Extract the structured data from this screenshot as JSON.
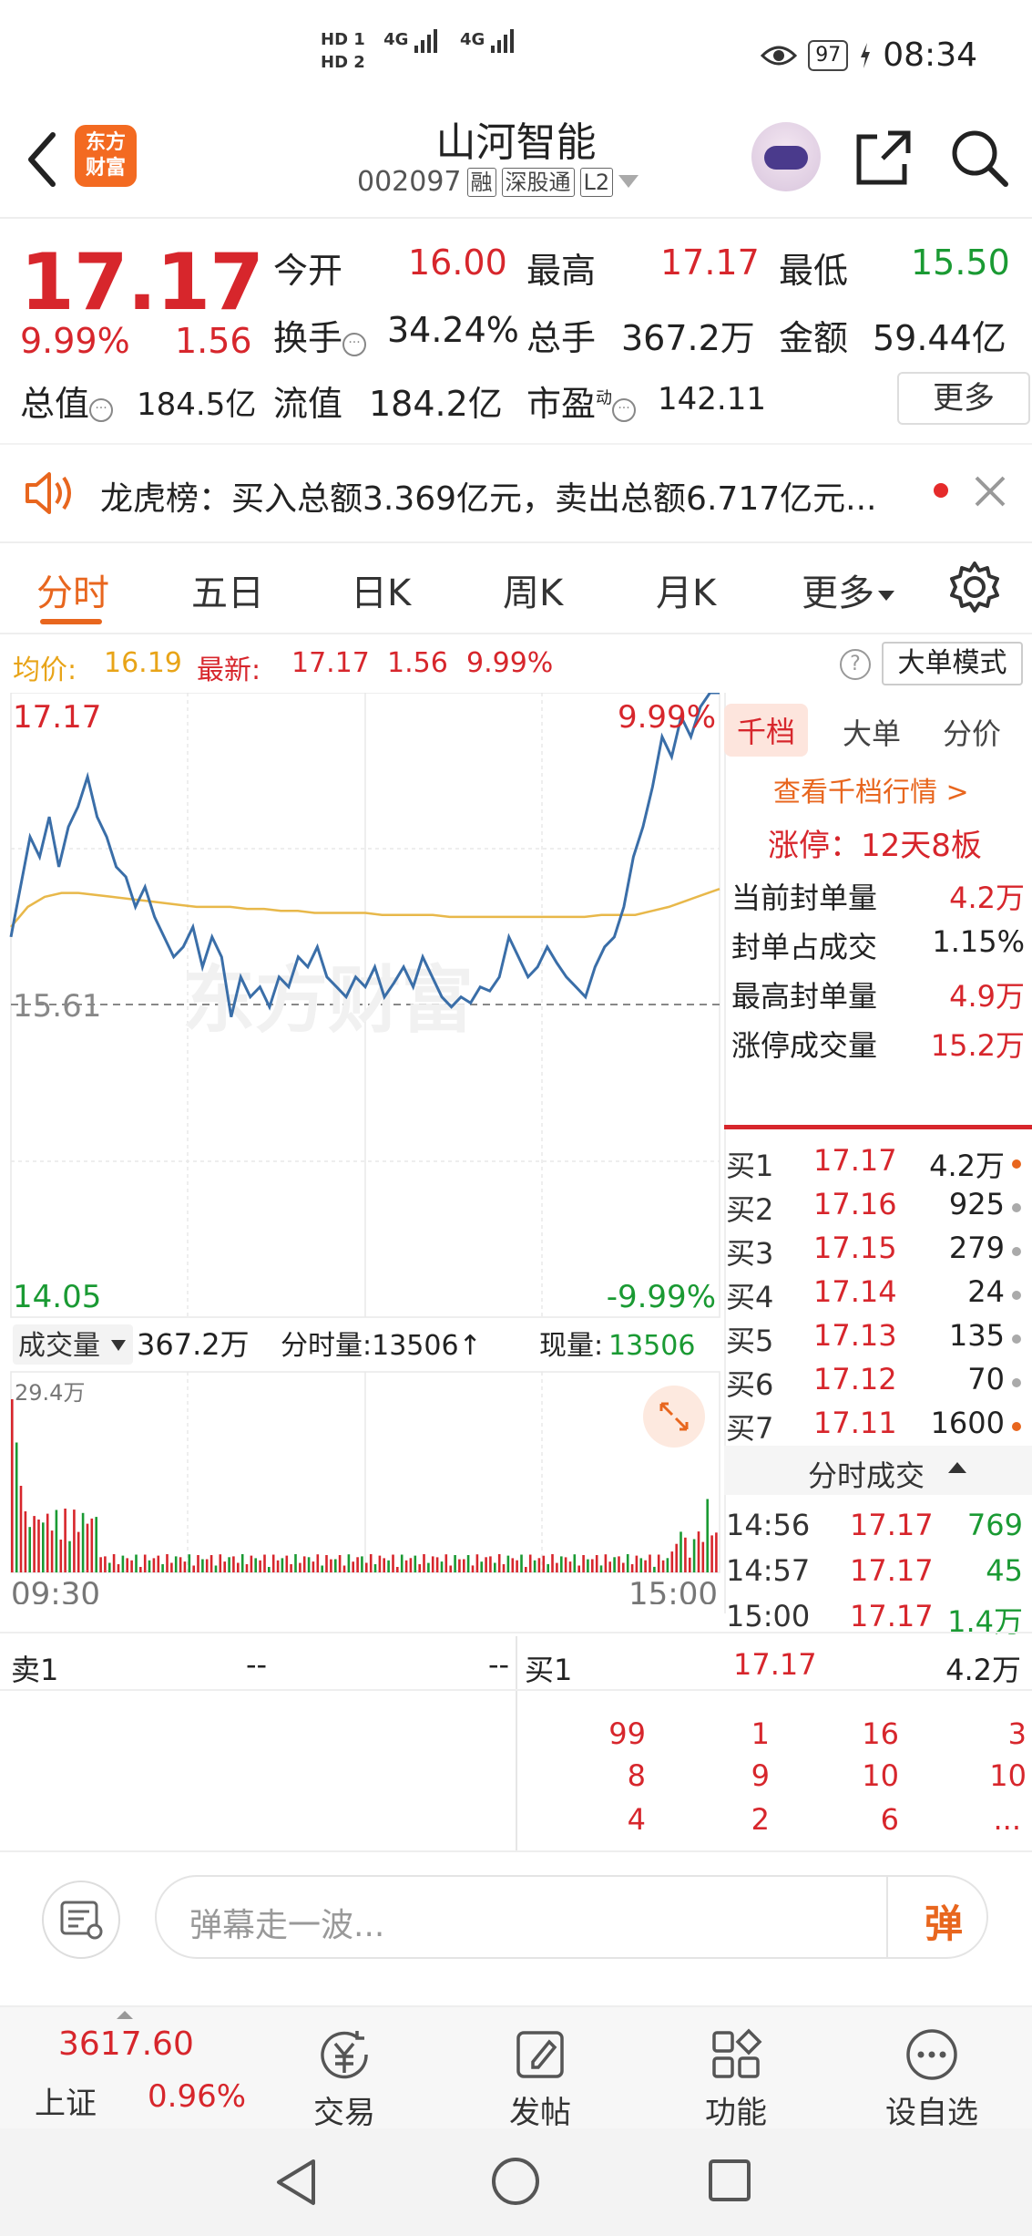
{
  "status_bar": {
    "hd1": "HD 1",
    "hd2": "HD 2",
    "net1": "4G",
    "net2": "4G",
    "battery": "97",
    "time": "08:34"
  },
  "header": {
    "logo_line1": "东方",
    "logo_line2": "财富",
    "stock_name": "山河智能",
    "stock_code": "002097",
    "tags": [
      "融",
      "深股通",
      "L2"
    ]
  },
  "quote": {
    "price": "17.17",
    "pct": "9.99%",
    "change": "1.56",
    "open_label": "今开",
    "open": "16.00",
    "high_label": "最高",
    "high": "17.17",
    "low_label": "最低",
    "low": "15.50",
    "turnover_label": "换手",
    "turnover": "34.24%",
    "volume_label": "总手",
    "volume": "367.2万",
    "amount_label": "金额",
    "amount": "59.44亿",
    "mktcap_label": "总值",
    "mktcap": "184.5亿",
    "float_label": "流值",
    "float": "184.2亿",
    "pe_label": "市盈",
    "pe_super": "动",
    "pe": "142.11",
    "more": "更多"
  },
  "notice": {
    "text": "龙虎榜：买入总额3.369亿元，卖出总额6.717亿元..."
  },
  "tabs": [
    {
      "label": "分时"
    },
    {
      "label": "五日"
    },
    {
      "label": "日K"
    },
    {
      "label": "周K"
    },
    {
      "label": "月K"
    },
    {
      "label": "更多"
    }
  ],
  "info_line": {
    "avg_label": "均价:",
    "avg": "16.19",
    "latest_label": "最新:",
    "latest": "17.17",
    "latest_chg": "1.56",
    "latest_pct": "9.99%",
    "big_order": "大单模式"
  },
  "chart": {
    "top_price": "17.17",
    "top_pct": "9.99%",
    "mid_price": "15.61",
    "bottom_price": "14.05",
    "bottom_pct": "-9.99%",
    "vol_label": "成交量",
    "vol_total": "367.2万",
    "minute_vol": "分时量:13506↑",
    "cur_vol_label": "现量:",
    "cur_vol": "13506",
    "vol_max": "29.4万",
    "time_start": "09:30",
    "time_end": "15:00"
  },
  "chart_data": {
    "type": "line",
    "title": "",
    "ylim": [
      14.05,
      17.17
    ],
    "xlabel": "",
    "ylabel": "",
    "x_range": [
      "09:30",
      "15:00"
    ],
    "series": [
      {
        "values": [
          15.95,
          16.2,
          16.45,
          16.35,
          16.55,
          16.3,
          16.5,
          16.6,
          16.75,
          16.55,
          16.45,
          16.3,
          16.25,
          16.1,
          16.2,
          16.05,
          15.95,
          15.85,
          15.9,
          16.0,
          15.8,
          15.95,
          15.85,
          15.55,
          15.75,
          15.65,
          15.7,
          15.6,
          15.75,
          15.7,
          15.85,
          15.8,
          15.9,
          15.75,
          15.7,
          15.65,
          15.75,
          15.7,
          15.8,
          15.65,
          15.72,
          15.8,
          15.7,
          15.85,
          15.75,
          15.65,
          15.6,
          15.65,
          15.62,
          15.7,
          15.68,
          15.75,
          15.95,
          15.85,
          15.75,
          15.8,
          15.9,
          15.82,
          15.75,
          15.7,
          15.65,
          15.8,
          15.9,
          15.95,
          16.1,
          16.35,
          16.5,
          16.7,
          16.95,
          16.85,
          17.05,
          16.95,
          17.1,
          17.17,
          17.17
        ]
      },
      {
        "values": [
          16.0,
          16.1,
          16.15,
          16.17,
          16.17,
          16.16,
          16.15,
          16.14,
          16.13,
          16.12,
          16.11,
          16.1,
          16.1,
          16.1,
          16.09,
          16.09,
          16.08,
          16.08,
          16.07,
          16.07,
          16.07,
          16.07,
          16.06,
          16.06,
          16.06,
          16.06,
          16.05,
          16.05,
          16.05,
          16.05,
          16.05,
          16.05,
          16.05,
          16.05,
          16.05,
          16.06,
          16.06,
          16.06,
          16.08,
          16.1,
          16.13,
          16.16,
          16.19
        ]
      }
    ]
  },
  "rpanel": {
    "tabs": [
      "千档",
      "大单",
      "分价"
    ],
    "link": "查看千档行情 >",
    "limit_up": "涨停：12天8板",
    "stats": [
      {
        "label": "当前封单量",
        "value": "4.2万",
        "red": true
      },
      {
        "label": "封单占成交",
        "value": "1.15%",
        "red": false
      },
      {
        "label": "最高封单量",
        "value": "4.9万",
        "red": true
      },
      {
        "label": "涨停成交量",
        "value": "15.2万",
        "red": true
      }
    ],
    "book": [
      {
        "label": "买1",
        "price": "17.17",
        "vol": "4.2万",
        "dot": "#e8661e"
      },
      {
        "label": "买2",
        "price": "17.16",
        "vol": "925",
        "dot": "#aaaaaa"
      },
      {
        "label": "买3",
        "price": "17.15",
        "vol": "279",
        "dot": "#aaaaaa"
      },
      {
        "label": "买4",
        "price": "17.14",
        "vol": "24",
        "dot": "#aaaaaa"
      },
      {
        "label": "买5",
        "price": "17.13",
        "vol": "135",
        "dot": "#aaaaaa"
      },
      {
        "label": "买6",
        "price": "17.12",
        "vol": "70",
        "dot": "#aaaaaa"
      },
      {
        "label": "买7",
        "price": "17.11",
        "vol": "1600",
        "dot": "#e8661e"
      }
    ],
    "ticks_title": "分时成交",
    "ticks": [
      {
        "time": "14:56",
        "price": "17.17",
        "vol": "769"
      },
      {
        "time": "14:57",
        "price": "17.17",
        "vol": "45"
      },
      {
        "time": "15:00",
        "price": "17.17",
        "vol": "1.4万"
      }
    ]
  },
  "bottom_book": {
    "sell_label": "卖1",
    "sell_price": "--",
    "sell_vol": "--",
    "buy_label": "买1",
    "buy_price": "17.17",
    "buy_vol": "4.2万",
    "queue": [
      [
        "99",
        "1",
        "16",
        "3"
      ],
      [
        "8",
        "9",
        "10",
        "10"
      ],
      [
        "4",
        "2",
        "6",
        "..."
      ]
    ]
  },
  "comment": {
    "placeholder": "弹幕走一波...",
    "send": "弹"
  },
  "bottom_nav": {
    "index_value": "3617.60",
    "index_name": "上证",
    "index_change": "0.96%",
    "items": [
      {
        "label": "交易"
      },
      {
        "label": "发帖"
      },
      {
        "label": "功能"
      },
      {
        "label": "设自选"
      }
    ]
  }
}
